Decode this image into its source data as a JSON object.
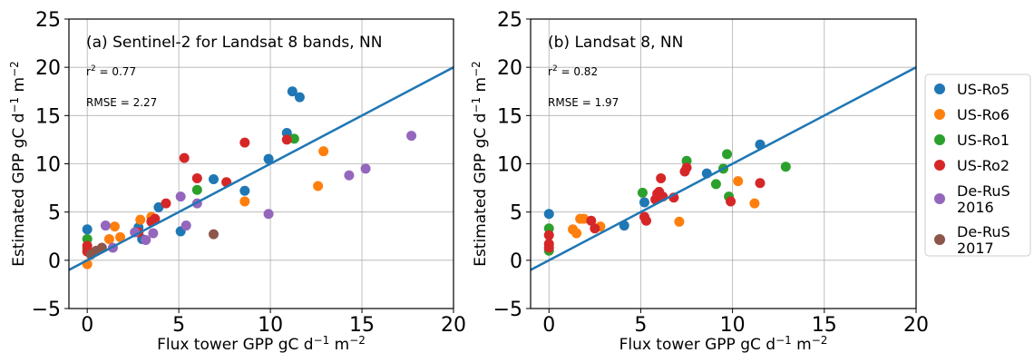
{
  "chart_data": [
    {
      "type": "scatter",
      "title": "(a) Sentinel-2 for Landsat 8 bands, NN",
      "r2_prefix": "r",
      "r2_sup": "2",
      "r2_rest": " = 0.77",
      "rmse_text": "RMSE = 2.27",
      "xlabel": "Flux tower GPP gC d",
      "xlabel_sup1": "−1",
      "xlabel_mid": " m",
      "xlabel_sup2": "−2",
      "ylabel": "Estimated GPP gC d",
      "ylabel_sup1": "−1",
      "ylabel_mid": " m",
      "ylabel_sup2": "−2",
      "xlim": [
        -1,
        20
      ],
      "ylim": [
        -5,
        25
      ],
      "xticks": [
        0,
        5,
        10,
        15,
        20
      ],
      "yticks": [
        -5,
        0,
        5,
        10,
        15,
        20,
        25
      ],
      "xtick_labels": [
        "0",
        "5",
        "10",
        "15",
        "20"
      ],
      "ytick_labels": [
        "−5",
        "0",
        "5",
        "10",
        "15",
        "20",
        "25"
      ],
      "grid": true,
      "line": {
        "x": [
          -1,
          20
        ],
        "y": [
          -1,
          20
        ],
        "color": "#1f77b4"
      },
      "series": [
        {
          "name": "US-Ro5",
          "color": "#1f77b4",
          "points": [
            [
              0.0,
              3.2
            ],
            [
              2.8,
              3.4
            ],
            [
              3.0,
              2.2
            ],
            [
              3.9,
              5.5
            ],
            [
              5.1,
              3.0
            ],
            [
              6.9,
              8.4
            ],
            [
              8.6,
              7.2
            ],
            [
              9.9,
              10.5
            ],
            [
              10.9,
              13.2
            ],
            [
              11.2,
              17.5
            ],
            [
              11.6,
              16.9
            ]
          ]
        },
        {
          "name": "US-Ro6",
          "color": "#ff7f0e",
          "points": [
            [
              0.0,
              -0.4
            ],
            [
              1.2,
              2.2
            ],
            [
              1.5,
              3.5
            ],
            [
              1.8,
              2.4
            ],
            [
              2.9,
              4.2
            ],
            [
              3.5,
              4.5
            ],
            [
              8.6,
              6.1
            ],
            [
              12.6,
              7.7
            ],
            [
              12.9,
              11.3
            ]
          ]
        },
        {
          "name": "US-Ro1",
          "color": "#2ca02c",
          "points": [
            [
              0.0,
              2.2
            ],
            [
              0.0,
              1.2
            ],
            [
              6.0,
              7.3
            ],
            [
              11.3,
              12.6
            ]
          ]
        },
        {
          "name": "US-Ro2",
          "color": "#d62728",
          "points": [
            [
              0.0,
              1.5
            ],
            [
              0.0,
              0.9
            ],
            [
              2.8,
              2.9
            ],
            [
              3.5,
              4.0
            ],
            [
              3.7,
              4.3
            ],
            [
              4.3,
              5.9
            ],
            [
              5.3,
              10.6
            ],
            [
              6.0,
              8.5
            ],
            [
              7.6,
              8.1
            ],
            [
              8.6,
              12.2
            ],
            [
              10.9,
              12.5
            ]
          ]
        },
        {
          "name": "De-RuS\n2016",
          "color": "#9467bd",
          "points": [
            [
              1.0,
              3.6
            ],
            [
              1.4,
              1.3
            ],
            [
              2.6,
              2.9
            ],
            [
              3.2,
              2.1
            ],
            [
              3.6,
              2.8
            ],
            [
              5.1,
              6.6
            ],
            [
              5.4,
              3.6
            ],
            [
              6.0,
              5.9
            ],
            [
              9.9,
              4.8
            ],
            [
              14.3,
              8.8
            ],
            [
              15.2,
              9.5
            ],
            [
              17.7,
              12.9
            ]
          ]
        },
        {
          "name": "De-RuS\n2017",
          "color": "#8c564b",
          "points": [
            [
              0.2,
              0.6
            ],
            [
              0.5,
              1.0
            ],
            [
              0.8,
              1.3
            ],
            [
              6.9,
              2.7
            ]
          ]
        }
      ]
    },
    {
      "type": "scatter",
      "title": "(b) Landsat 8, NN",
      "r2_prefix": "r",
      "r2_sup": "2",
      "r2_rest": " = 0.82",
      "rmse_text": "RMSE = 1.97",
      "xlabel": "Flux tower GPP gC d",
      "xlabel_sup1": "−1",
      "xlabel_mid": " m",
      "xlabel_sup2": "−2",
      "ylabel": "Estimated GPP gC d",
      "ylabel_sup1": "−1",
      "ylabel_mid": " m",
      "ylabel_sup2": "−2",
      "xlim": [
        -1,
        20
      ],
      "ylim": [
        -5,
        25
      ],
      "xticks": [
        0,
        5,
        10,
        15,
        20
      ],
      "yticks": [
        -5,
        0,
        5,
        10,
        15,
        20,
        25
      ],
      "xtick_labels": [
        "0",
        "5",
        "10",
        "15",
        "20"
      ],
      "ytick_labels": [
        "−5",
        "0",
        "5",
        "10",
        "15",
        "20",
        "25"
      ],
      "grid": true,
      "line": {
        "x": [
          -1,
          20
        ],
        "y": [
          -1,
          20
        ],
        "color": "#1f77b4"
      },
      "series": [
        {
          "name": "US-Ro5",
          "color": "#1f77b4",
          "points": [
            [
              0.0,
              4.8
            ],
            [
              4.1,
              3.6
            ],
            [
              5.2,
              6.0
            ],
            [
              8.6,
              9.0
            ],
            [
              11.5,
              12.0
            ]
          ]
        },
        {
          "name": "US-Ro6",
          "color": "#ff7f0e",
          "points": [
            [
              1.3,
              3.2
            ],
            [
              1.5,
              2.8
            ],
            [
              1.7,
              4.3
            ],
            [
              1.9,
              4.3
            ],
            [
              2.8,
              3.5
            ],
            [
              7.1,
              4.0
            ],
            [
              10.3,
              8.2
            ],
            [
              11.2,
              5.9
            ]
          ]
        },
        {
          "name": "US-Ro1",
          "color": "#2ca02c",
          "points": [
            [
              0.0,
              3.3
            ],
            [
              0.0,
              1.0
            ],
            [
              5.1,
              7.0
            ],
            [
              7.5,
              10.3
            ],
            [
              9.1,
              7.9
            ],
            [
              9.5,
              9.5
            ],
            [
              9.7,
              11.0
            ],
            [
              9.8,
              6.6
            ],
            [
              12.9,
              9.7
            ]
          ]
        },
        {
          "name": "US-Ro2",
          "color": "#d62728",
          "points": [
            [
              0.0,
              2.6
            ],
            [
              0.0,
              1.7
            ],
            [
              0.0,
              1.3
            ],
            [
              2.3,
              4.1
            ],
            [
              2.5,
              3.3
            ],
            [
              5.2,
              4.5
            ],
            [
              5.3,
              4.1
            ],
            [
              5.8,
              6.3
            ],
            [
              5.9,
              6.9
            ],
            [
              6.0,
              7.1
            ],
            [
              6.2,
              6.6
            ],
            [
              6.1,
              8.5
            ],
            [
              6.8,
              6.5
            ],
            [
              7.4,
              9.2
            ],
            [
              7.5,
              9.6
            ],
            [
              9.9,
              6.1
            ],
            [
              11.5,
              8.0
            ]
          ]
        }
      ]
    }
  ],
  "legend": {
    "items": [
      {
        "label_lines": [
          "US-Ro5"
        ],
        "color": "#1f77b4"
      },
      {
        "label_lines": [
          "US-Ro6"
        ],
        "color": "#ff7f0e"
      },
      {
        "label_lines": [
          "US-Ro1"
        ],
        "color": "#2ca02c"
      },
      {
        "label_lines": [
          "US-Ro2"
        ],
        "color": "#d62728"
      },
      {
        "label_lines": [
          "De-RuS",
          "2016"
        ],
        "color": "#9467bd"
      },
      {
        "label_lines": [
          "De-RuS",
          "2017"
        ],
        "color": "#8c564b"
      }
    ]
  }
}
